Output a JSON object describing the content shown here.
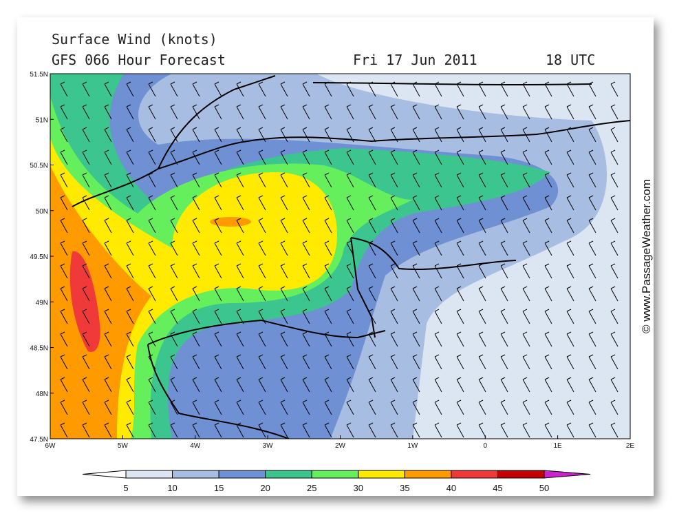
{
  "header": {
    "title": "Surface Wind (knots)",
    "model": "GFS 066 Hour Forecast",
    "date": "Fri 17 Jun 2011",
    "time": "18 UTC"
  },
  "lat_labels": [
    "51.5N",
    "51N",
    "50.5N",
    "50N",
    "49.5N",
    "49N",
    "48.5N",
    "48N",
    "47.5N"
  ],
  "lon_labels": [
    "6W",
    "5W",
    "4W",
    "3W",
    "2W",
    "1W",
    "0",
    "1E",
    "2E"
  ],
  "colorbar": {
    "labels": [
      "5",
      "10",
      "15",
      "20",
      "25",
      "30",
      "35",
      "40",
      "45",
      "50"
    ],
    "colors": [
      "#ffffff",
      "#dce5f2",
      "#a8bde2",
      "#6f90d2",
      "#3cc58e",
      "#66ef5c",
      "#ffea00",
      "#ff9a00",
      "#f03a3a",
      "#c40000",
      "#cc22cc"
    ]
  },
  "watermark": "© www.PassageWeather.com"
}
